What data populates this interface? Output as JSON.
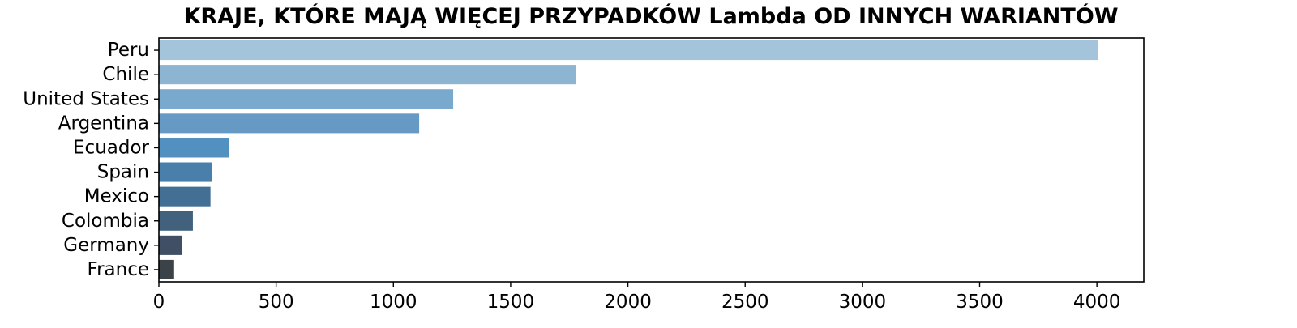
{
  "chart_data": {
    "type": "bar",
    "orientation": "horizontal",
    "title": "KRAJE, KTÓRE MAJĄ WIĘCEJ PRZYPADKÓW Lambda OD INNYCH WARIANTÓW",
    "xlabel": "",
    "ylabel": "",
    "categories": [
      "Peru",
      "Chile",
      "United States",
      "Argentina",
      "Ecuador",
      "Spain",
      "Mexico",
      "Colombia",
      "Germany",
      "France"
    ],
    "values": [
      4005,
      1780,
      1255,
      1110,
      300,
      225,
      220,
      145,
      100,
      65
    ],
    "colors": [
      "#a3c4db",
      "#8db5d1",
      "#79a9cc",
      "#669ac4",
      "#5290bf",
      "#4a7fab",
      "#436f94",
      "#41617d",
      "#404f63",
      "#3b4349"
    ],
    "xlim": [
      0,
      4200
    ],
    "xticks": [
      0,
      500,
      1000,
      1500,
      2000,
      2500,
      3000,
      3500,
      4000
    ],
    "grid": false,
    "legend": "none"
  }
}
